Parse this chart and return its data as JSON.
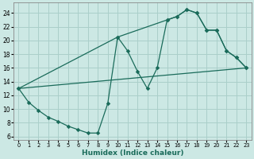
{
  "xlabel": "Humidex (Indice chaleur)",
  "bg_color": "#cce8e4",
  "grid_color": "#aacfca",
  "line_color": "#1a6b5a",
  "xlim": [
    -0.5,
    23.5
  ],
  "ylim": [
    5.5,
    25.5
  ],
  "xticks": [
    0,
    1,
    2,
    3,
    4,
    5,
    6,
    7,
    8,
    9,
    10,
    11,
    12,
    13,
    14,
    15,
    16,
    17,
    18,
    19,
    20,
    21,
    22,
    23
  ],
  "yticks": [
    6,
    8,
    10,
    12,
    14,
    16,
    18,
    20,
    22,
    24
  ],
  "line1_x": [
    0,
    1,
    2,
    3,
    4,
    5,
    6,
    7,
    8,
    9,
    10,
    11,
    12,
    13,
    14,
    15,
    16,
    17,
    18,
    19,
    20,
    21,
    22,
    23
  ],
  "line1_y": [
    13,
    11,
    9.8,
    8.8,
    8.2,
    7.5,
    7.0,
    6.5,
    6.5,
    10.8,
    20.5,
    18.5,
    15.5,
    13,
    16,
    23,
    23.5,
    24.5,
    24,
    21.5,
    21.5,
    18.5,
    17.5,
    16
  ],
  "line2_x": [
    0,
    23
  ],
  "line2_y": [
    13,
    16
  ],
  "line3_x": [
    0,
    10,
    15,
    16,
    17,
    18,
    19,
    20,
    21,
    22,
    23
  ],
  "line3_y": [
    13,
    20.5,
    23,
    23.5,
    24.5,
    24,
    21.5,
    21.5,
    18.5,
    17.5,
    16
  ]
}
